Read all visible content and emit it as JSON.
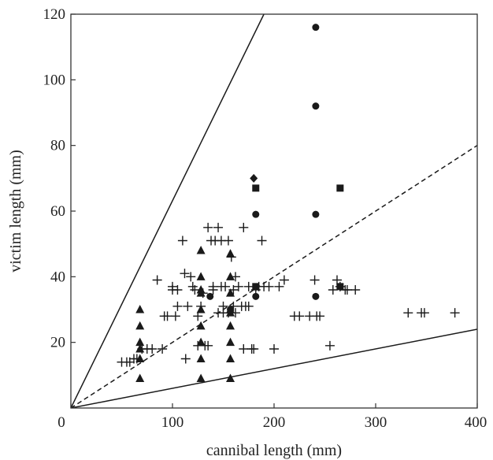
{
  "chart_data": {
    "type": "scatter",
    "title": "",
    "xlabel": "cannibal length (mm)",
    "ylabel": "victim length (mm)",
    "xlim": [
      0,
      400
    ],
    "ylim": [
      0,
      120
    ],
    "xticks": [
      0,
      100,
      200,
      300,
      400
    ],
    "yticks": [
      20,
      40,
      60,
      80,
      100,
      120
    ],
    "grid": false,
    "legend": "none",
    "colors": {
      "marker": "#1a1a1a",
      "line": "#1a1a1a",
      "axis": "#333333"
    },
    "reference_lines": [
      {
        "style": "solid",
        "x": [
          0,
          190
        ],
        "y": [
          0,
          120
        ]
      },
      {
        "style": "dashed",
        "x": [
          0,
          400
        ],
        "y": [
          0,
          80
        ]
      },
      {
        "style": "solid",
        "x": [
          0,
          400
        ],
        "y": [
          0,
          24
        ]
      }
    ],
    "series": [
      {
        "marker": "triangle",
        "x": [
          68,
          68,
          68,
          68,
          68,
          68,
          128,
          128,
          128,
          128,
          128,
          128,
          128,
          128,
          128,
          157,
          157,
          157,
          157,
          157,
          157,
          157,
          157,
          157
        ],
        "y": [
          30,
          25,
          20,
          18,
          15,
          9,
          48,
          40,
          36,
          30,
          25,
          20,
          15,
          9,
          35,
          47,
          40,
          35,
          30,
          25,
          20,
          15,
          9,
          29
        ]
      },
      {
        "marker": "circle",
        "x": [
          241,
          241,
          241,
          241,
          182,
          182,
          137,
          157
        ],
        "y": [
          116,
          92,
          59,
          34,
          59,
          34,
          34,
          30
        ]
      },
      {
        "marker": "square",
        "x": [
          182,
          182,
          265,
          265
        ],
        "y": [
          67,
          37,
          67,
          37
        ]
      },
      {
        "marker": "diamond",
        "x": [
          180
        ],
        "y": [
          70
        ]
      },
      {
        "marker": "plus",
        "x": [
          50,
          55,
          58,
          62,
          65,
          70,
          75,
          80,
          85,
          90,
          92,
          95,
          100,
          100,
          103,
          105,
          105,
          110,
          112,
          113,
          115,
          118,
          120,
          122,
          125,
          125,
          128,
          130,
          132,
          135,
          135,
          138,
          140,
          140,
          142,
          145,
          145,
          148,
          148,
          150,
          150,
          152,
          155,
          155,
          158,
          160,
          160,
          162,
          162,
          165,
          168,
          170,
          170,
          172,
          175,
          175,
          178,
          180,
          182,
          185,
          188,
          190,
          195,
          200,
          205,
          210,
          220,
          225,
          235,
          240,
          242,
          245,
          255,
          258,
          262,
          265,
          270,
          272,
          280,
          332,
          345,
          348,
          378
        ],
        "y": [
          14,
          14,
          14,
          15,
          15,
          18,
          18,
          18,
          39,
          18,
          28,
          28,
          37,
          36,
          28,
          31,
          36,
          51,
          41,
          15,
          31,
          40,
          37,
          36,
          28,
          19,
          31,
          35,
          19,
          55,
          19,
          51,
          37,
          36,
          51,
          55,
          29,
          51,
          37,
          29,
          31,
          37,
          51,
          29,
          46,
          36,
          31,
          40,
          29,
          37,
          31,
          55,
          18,
          31,
          37,
          31,
          18,
          18,
          36,
          37,
          51,
          37,
          37,
          18,
          37,
          39,
          28,
          28,
          28,
          39,
          28,
          28,
          19,
          36,
          39,
          37,
          36,
          36,
          36,
          29,
          29,
          29,
          29
        ]
      }
    ]
  }
}
